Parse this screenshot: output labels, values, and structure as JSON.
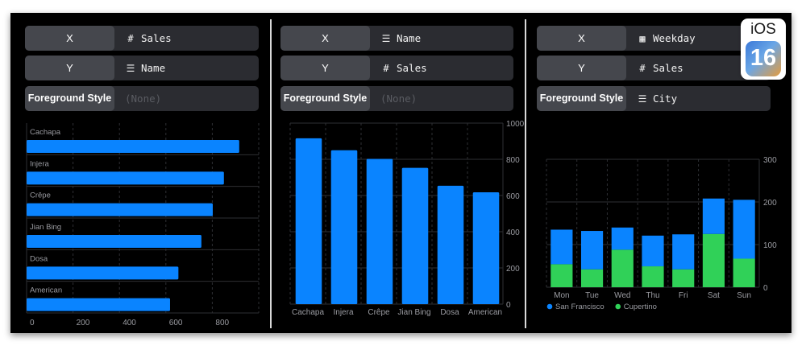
{
  "panels": [
    {
      "controls": [
        {
          "key": "X",
          "icon": "number-sign-icon",
          "glyph": "#",
          "value": "Sales"
        },
        {
          "key": "Y",
          "icon": "list-icon",
          "glyph": "☰",
          "value": "Name"
        },
        {
          "key": "Foreground Style",
          "icon": "",
          "glyph": "",
          "value": "(None)"
        }
      ]
    },
    {
      "controls": [
        {
          "key": "X",
          "icon": "list-icon",
          "glyph": "☰",
          "value": "Name"
        },
        {
          "key": "Y",
          "icon": "number-sign-icon",
          "glyph": "#",
          "value": "Sales"
        },
        {
          "key": "Foreground Style",
          "icon": "",
          "glyph": "",
          "value": "(None)"
        }
      ]
    },
    {
      "controls": [
        {
          "key": "X",
          "icon": "calendar-icon",
          "glyph": "▦",
          "value": "Weekday"
        },
        {
          "key": "Y",
          "icon": "number-sign-icon",
          "glyph": "#",
          "value": "Sales"
        },
        {
          "key": "Foreground Style",
          "icon": "list-icon",
          "glyph": "☰",
          "value": "City"
        }
      ]
    }
  ],
  "chart_data": [
    {
      "type": "bar",
      "orientation": "horizontal",
      "categories": [
        "Cachapa",
        "Injera",
        "Crêpe",
        "Jian Bing",
        "Dosa",
        "American"
      ],
      "values": [
        916,
        850,
        802,
        753,
        654,
        618
      ],
      "xticks": [
        "0",
        "200",
        "400",
        "600",
        "800"
      ],
      "xlim": [
        0,
        1000
      ],
      "grid": true,
      "color": "#0a84ff"
    },
    {
      "type": "bar",
      "orientation": "vertical",
      "categories": [
        "Cachapa",
        "Injera",
        "Crêpe",
        "Jian Bing",
        "Dosa",
        "American"
      ],
      "values": [
        916,
        850,
        802,
        753,
        654,
        618
      ],
      "yticks": [
        "0",
        "200",
        "400",
        "600",
        "800",
        "1000"
      ],
      "ylim": [
        0,
        1000
      ],
      "grid": true,
      "color": "#0a84ff"
    },
    {
      "type": "bar",
      "stacked": true,
      "categories": [
        "Mon",
        "Tue",
        "Wed",
        "Thu",
        "Fri",
        "Sat",
        "Sun"
      ],
      "series": [
        {
          "name": "Cupertino",
          "values": [
            54,
            42,
            88,
            49,
            42,
            125,
            67
          ],
          "color": "#30d158"
        },
        {
          "name": "San Francisco",
          "values": [
            81,
            90,
            52,
            72,
            82,
            83,
            138
          ],
          "color": "#0a84ff"
        }
      ],
      "legend_order": [
        "San Francisco",
        "Cupertino"
      ],
      "yticks": [
        "0",
        "100",
        "200",
        "300"
      ],
      "ylim": [
        0,
        300
      ],
      "grid": true,
      "legend": "bottom-left"
    }
  ],
  "badge": {
    "label": "iOS",
    "version": "16"
  }
}
